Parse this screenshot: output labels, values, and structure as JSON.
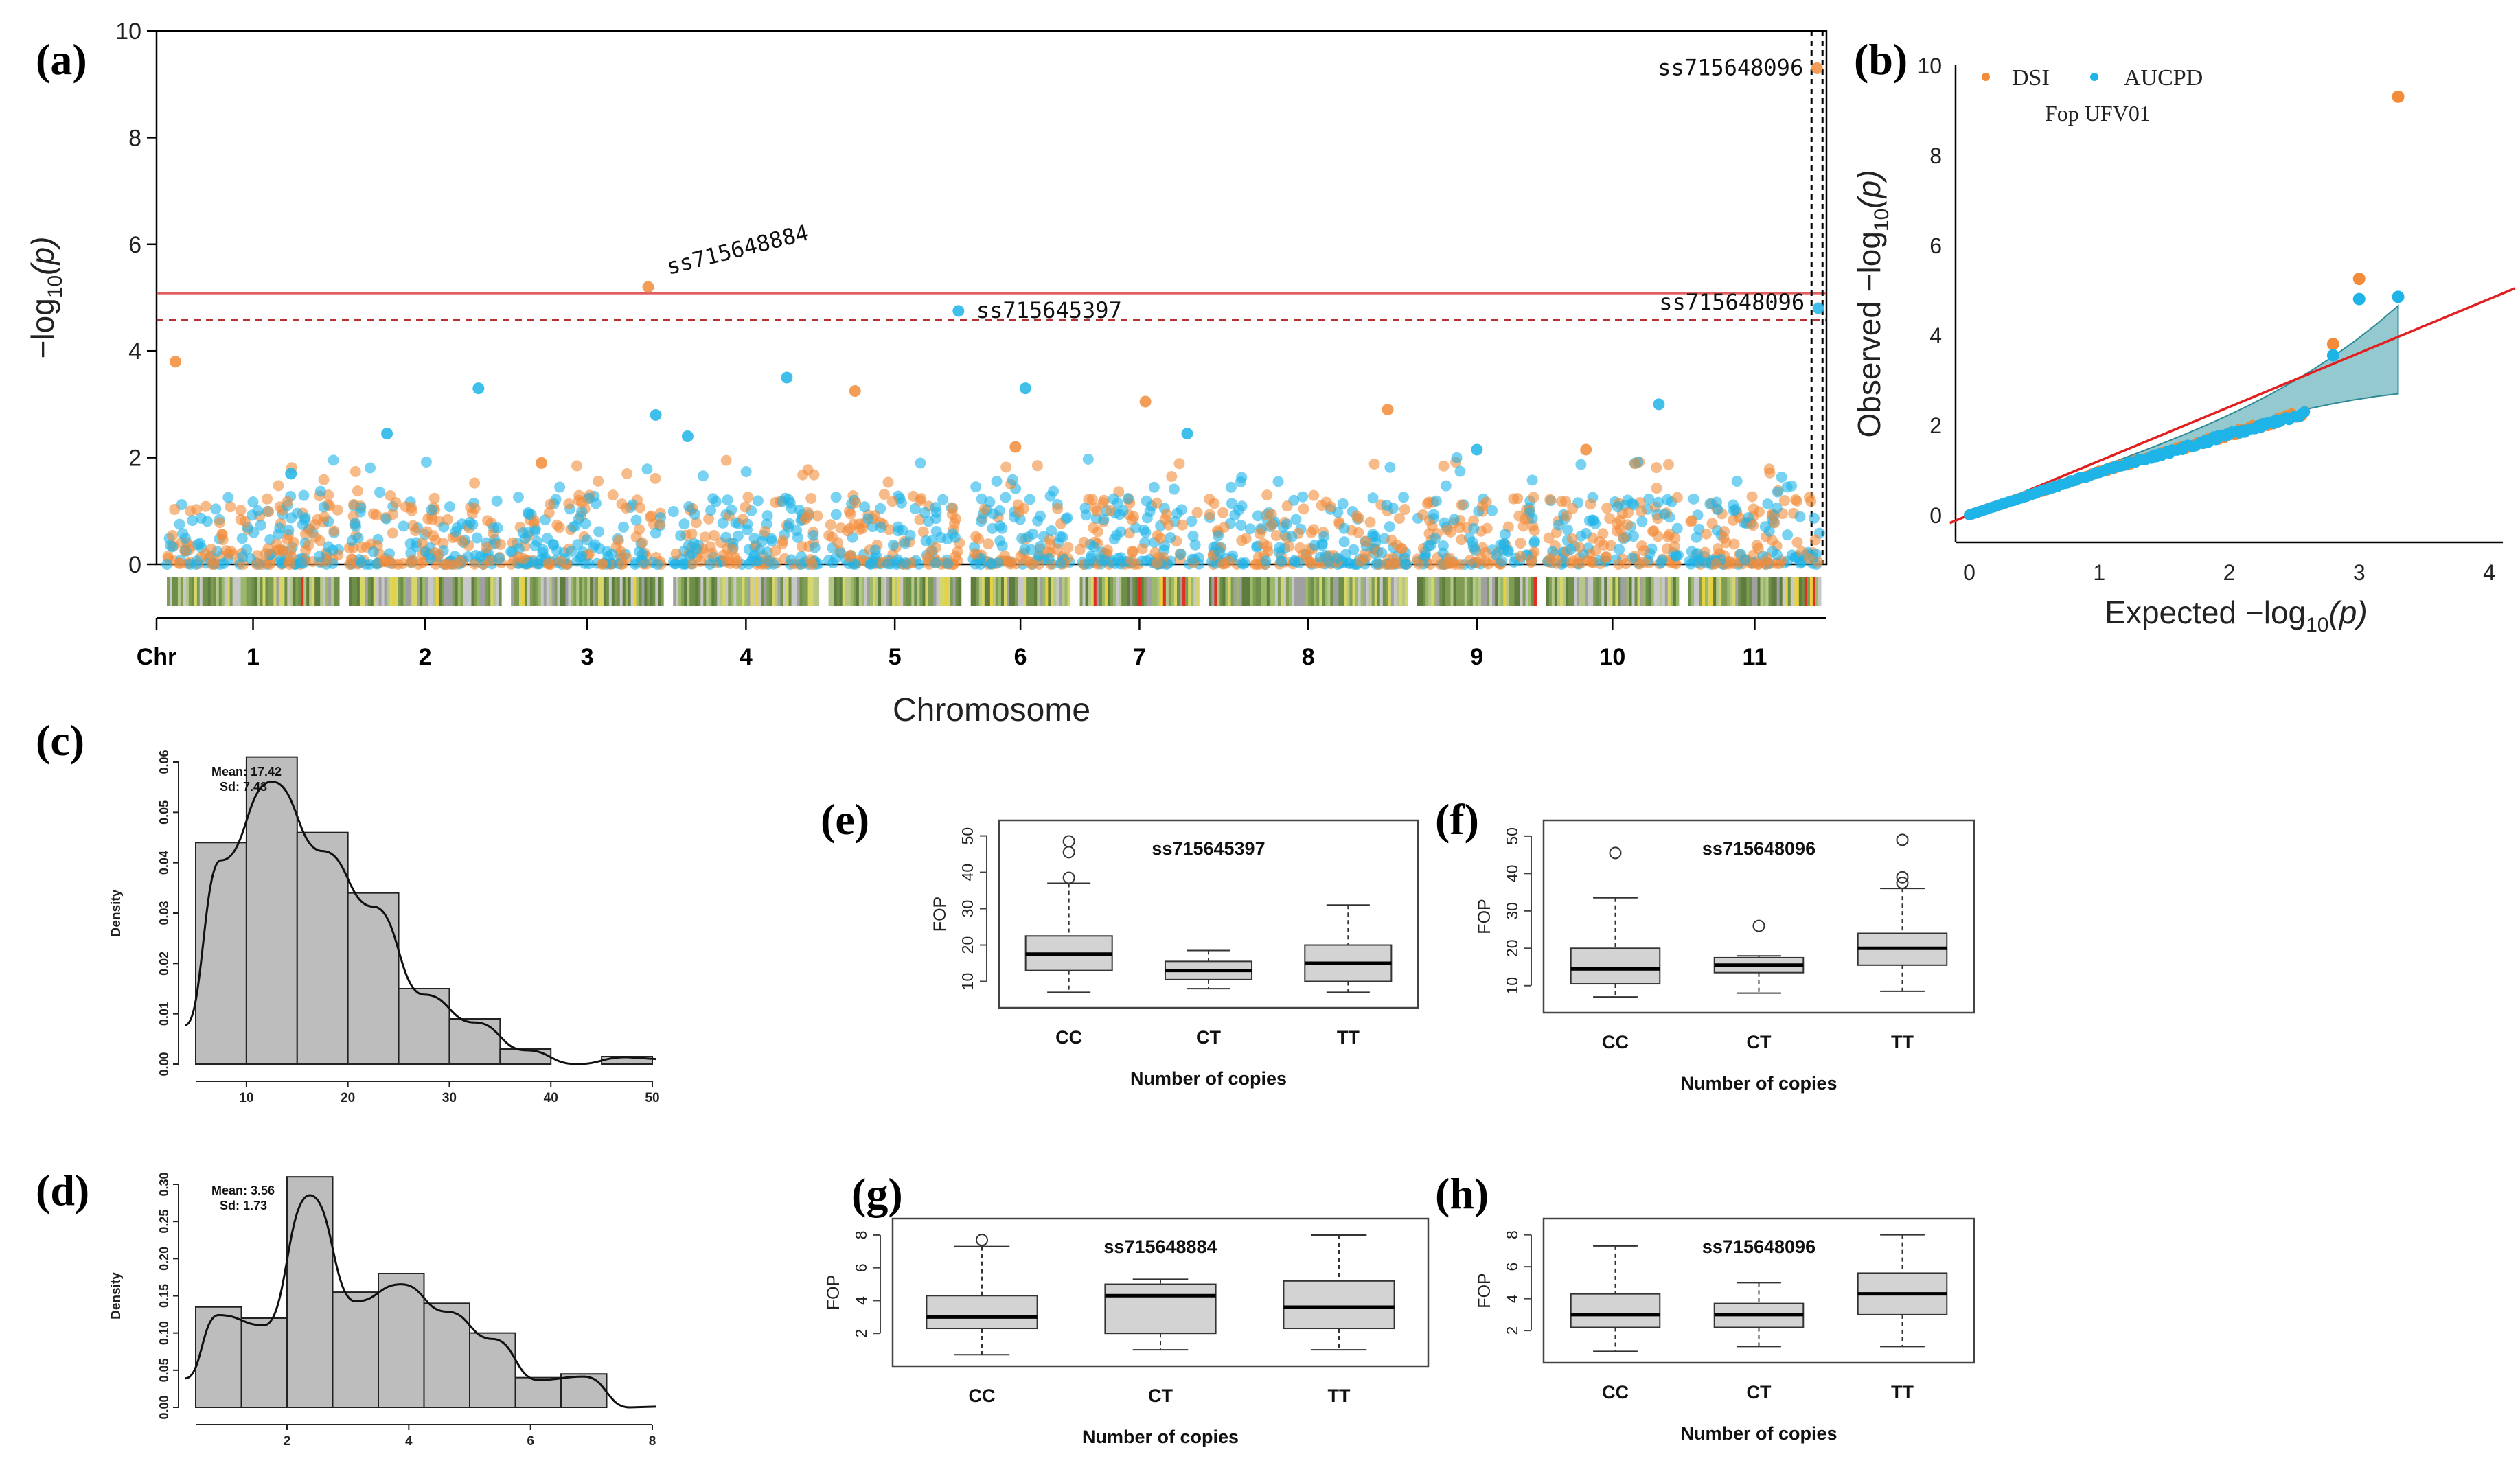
{
  "colors": {
    "dsi": "#F28C3A",
    "aucpd": "#1FB4E8",
    "threshold_solid": "#E06060",
    "threshold_dashed": "#B83030",
    "box_fill": "#D3D3D3",
    "hist_fill": "#BDBDBD",
    "qq_band": "#3D9CA8",
    "qq_line": "#E02020"
  },
  "chart_data": [
    {
      "panel": "(a)",
      "type": "scatter",
      "subtype": "manhattan",
      "xlabel": "Chromosome",
      "ylabel": "−log",
      "ylabel_sub": "10",
      "ylabel_tail": "(p)",
      "x_prefix": "Chr",
      "chromosomes": [
        "1",
        "2",
        "3",
        "4",
        "5",
        "6",
        "7",
        "8",
        "9",
        "10",
        "11"
      ],
      "chrom_widths": [
        1.3,
        1.15,
        1.15,
        1.1,
        1.0,
        0.75,
        0.9,
        1.5,
        0.9,
        1.0,
        1.0
      ],
      "ylim": [
        0,
        10
      ],
      "yticks": [
        0,
        2,
        4,
        6,
        8,
        10
      ],
      "thresholds": [
        5.08,
        4.58
      ],
      "series": [
        {
          "name": "DSI",
          "color_key": "dsi"
        },
        {
          "name": "AUCPD",
          "color_key": "aucpd"
        }
      ],
      "peaks": [
        {
          "chrom": 1,
          "pos": 0.05,
          "y": 3.8,
          "s": 0
        },
        {
          "chrom": 1,
          "pos": 0.72,
          "y": 1.7,
          "s": 1
        },
        {
          "chrom": 2,
          "pos": 0.25,
          "y": 2.45,
          "s": 1
        },
        {
          "chrom": 2,
          "pos": 0.85,
          "y": 3.3,
          "s": 1
        },
        {
          "chrom": 3,
          "pos": 0.2,
          "y": 1.9,
          "s": 0
        },
        {
          "chrom": 3,
          "pos": 0.9,
          "y": 5.2,
          "s": 0
        },
        {
          "chrom": 3,
          "pos": 0.95,
          "y": 2.8,
          "s": 1
        },
        {
          "chrom": 4,
          "pos": 0.1,
          "y": 2.4,
          "s": 1
        },
        {
          "chrom": 4,
          "pos": 0.78,
          "y": 3.5,
          "s": 1
        },
        {
          "chrom": 5,
          "pos": 0.2,
          "y": 3.25,
          "s": 0
        },
        {
          "chrom": 5,
          "pos": 0.98,
          "y": 4.75,
          "s": 1
        },
        {
          "chrom": 6,
          "pos": 0.55,
          "y": 3.3,
          "s": 1
        },
        {
          "chrom": 6,
          "pos": 0.45,
          "y": 2.2,
          "s": 0
        },
        {
          "chrom": 7,
          "pos": 0.55,
          "y": 3.05,
          "s": 0
        },
        {
          "chrom": 7,
          "pos": 0.9,
          "y": 2.45,
          "s": 1
        },
        {
          "chrom": 8,
          "pos": 0.9,
          "y": 2.9,
          "s": 0
        },
        {
          "chrom": 9,
          "pos": 0.5,
          "y": 2.15,
          "s": 1
        },
        {
          "chrom": 10,
          "pos": 0.3,
          "y": 2.15,
          "s": 0
        },
        {
          "chrom": 10,
          "pos": 0.85,
          "y": 3.0,
          "s": 1
        },
        {
          "chrom": 11,
          "pos": 0.97,
          "y": 9.3,
          "s": 0
        },
        {
          "chrom": 11,
          "pos": 0.98,
          "y": 4.8,
          "s": 1
        }
      ],
      "annotations": [
        {
          "text": "ss715648884",
          "chrom": 3,
          "pos": 0.9,
          "y": 5.2
        },
        {
          "text": "ss715645397",
          "chrom": 5,
          "pos": 0.98,
          "y": 4.75
        },
        {
          "text": "ss715648096",
          "chrom": 11,
          "pos": 0.97,
          "y": 9.3
        },
        {
          "text": "ss715648096",
          "chrom": 11,
          "pos": 0.98,
          "y": 4.8
        }
      ]
    },
    {
      "panel": "(b)",
      "type": "scatter",
      "subtype": "qq",
      "xlabel": "Expected",
      "ylabel": "Observed",
      "axis_unit": "−log",
      "axis_sub": "10",
      "axis_tail": "(p)",
      "xlim": [
        0,
        4
      ],
      "ylim": [
        0,
        10
      ],
      "xticks": [
        0,
        1,
        2,
        3,
        4
      ],
      "yticks": [
        0,
        2,
        4,
        6,
        8,
        10
      ],
      "legend": [
        "DSI",
        "AUCPD"
      ],
      "legend_title": "Fop UFV01",
      "n_points": 130,
      "top_points": [
        {
          "x": 3.3,
          "y": 9.3,
          "s": 0
        },
        {
          "x": 3.3,
          "y": 4.85,
          "s": 1
        },
        {
          "x": 3.0,
          "y": 5.25,
          "s": 0
        },
        {
          "x": 3.0,
          "y": 4.8,
          "s": 1
        },
        {
          "x": 2.8,
          "y": 3.8,
          "s": 0
        },
        {
          "x": 2.8,
          "y": 3.55,
          "s": 1
        }
      ]
    },
    {
      "panel": "(c)",
      "type": "bar",
      "subtype": "histogram",
      "bins": [
        5,
        10,
        15,
        20,
        25,
        30,
        35,
        40,
        45,
        50
      ],
      "densities": [
        0.044,
        0.061,
        0.046,
        0.034,
        0.015,
        0.009,
        0.003,
        0.0,
        0.0015
      ],
      "xlim": [
        5,
        50
      ],
      "ylim": [
        0,
        0.06
      ],
      "xticks": [
        10,
        20,
        30,
        40,
        50
      ],
      "yticks": [
        0.0,
        0.01,
        0.02,
        0.03,
        0.04,
        0.05,
        0.06
      ],
      "ytick_labels": [
        "0.00",
        "0.01",
        "0.02",
        "0.03",
        "0.04",
        "0.05",
        "0.06"
      ],
      "ylabel": "Density",
      "stat_mean": "Mean: 17.42",
      "stat_sd": "Sd: 7.43"
    },
    {
      "panel": "(d)",
      "type": "bar",
      "subtype": "histogram",
      "bins": [
        0.5,
        1.25,
        2.0,
        2.75,
        3.5,
        4.25,
        5.0,
        5.75,
        6.5,
        7.25,
        8.0
      ],
      "densities": [
        0.135,
        0.12,
        0.31,
        0.155,
        0.18,
        0.14,
        0.1,
        0.04,
        0.045,
        0.0
      ],
      "xlim": [
        0.5,
        8
      ],
      "ylim": [
        0,
        0.3
      ],
      "xticks": [
        2,
        4,
        6,
        8
      ],
      "yticks": [
        0.0,
        0.05,
        0.1,
        0.15,
        0.2,
        0.25,
        0.3
      ],
      "ytick_labels": [
        "0.00",
        "0.05",
        "0.10",
        "0.15",
        "0.20",
        "0.25",
        "0.30"
      ],
      "ylabel": "Density",
      "stat_mean": "Mean: 3.56",
      "stat_sd": "Sd: 1.73"
    },
    {
      "panel": "(e)",
      "type": "box",
      "title": "ss715645397",
      "categories": [
        "CC",
        "CT",
        "TT"
      ],
      "ylim": [
        5,
        52
      ],
      "yticks": [
        10,
        20,
        30,
        40,
        50
      ],
      "ylabel": "FOP",
      "xlabel": "Number of copies",
      "boxes": [
        {
          "min": 7,
          "q1": 13,
          "median": 17.5,
          "q3": 22.5,
          "max": 37,
          "outliers": [
            38.5,
            45.5,
            48.5
          ]
        },
        {
          "min": 8,
          "q1": 10.5,
          "median": 13,
          "q3": 15.5,
          "max": 18.5,
          "outliers": []
        },
        {
          "min": 7,
          "q1": 10,
          "median": 15,
          "q3": 20,
          "max": 31,
          "outliers": []
        }
      ]
    },
    {
      "panel": "(f)",
      "type": "box",
      "title": "ss715648096",
      "categories": [
        "CC",
        "CT",
        "TT"
      ],
      "ylim": [
        5,
        52
      ],
      "yticks": [
        10,
        20,
        30,
        40,
        50
      ],
      "ylabel": "FOP",
      "xlabel": "Number of copies",
      "boxes": [
        {
          "min": 7,
          "q1": 10.5,
          "median": 14.5,
          "q3": 20,
          "max": 33.5,
          "outliers": [
            45.5
          ]
        },
        {
          "min": 8,
          "q1": 13.5,
          "median": 15.5,
          "q3": 17.5,
          "max": 18,
          "outliers": [
            26
          ]
        },
        {
          "min": 8.5,
          "q1": 15.5,
          "median": 20,
          "q3": 24,
          "max": 36,
          "outliers": [
            37.5,
            39,
            49
          ]
        }
      ]
    },
    {
      "panel": "(g)",
      "type": "box",
      "title": "ss715648884",
      "categories": [
        "CC",
        "CT",
        "TT"
      ],
      "ylim": [
        0.5,
        8.5
      ],
      "yticks": [
        2,
        4,
        6,
        8
      ],
      "ylabel": "FOP",
      "xlabel": "Number of copies",
      "boxes": [
        {
          "min": 0.7,
          "q1": 2.3,
          "median": 3.0,
          "q3": 4.3,
          "max": 7.3,
          "outliers": [
            7.7
          ]
        },
        {
          "min": 1.0,
          "q1": 2.0,
          "median": 4.3,
          "q3": 5.0,
          "max": 5.3,
          "outliers": []
        },
        {
          "min": 1.0,
          "q1": 2.3,
          "median": 3.6,
          "q3": 5.2,
          "max": 8.0,
          "outliers": []
        }
      ]
    },
    {
      "panel": "(h)",
      "type": "box",
      "title": "ss715648096",
      "categories": [
        "CC",
        "CT",
        "TT"
      ],
      "ylim": [
        0.5,
        8.5
      ],
      "yticks": [
        2,
        4,
        6,
        8
      ],
      "ylabel": "FOP",
      "xlabel": "Number of copies",
      "boxes": [
        {
          "min": 0.7,
          "q1": 2.2,
          "median": 3.0,
          "q3": 4.3,
          "max": 7.3,
          "outliers": []
        },
        {
          "min": 1.0,
          "q1": 2.2,
          "median": 3.0,
          "q3": 3.7,
          "max": 5.0,
          "outliers": []
        },
        {
          "min": 1.0,
          "q1": 3.0,
          "median": 4.3,
          "q3": 5.6,
          "max": 8.0,
          "outliers": []
        }
      ]
    }
  ]
}
